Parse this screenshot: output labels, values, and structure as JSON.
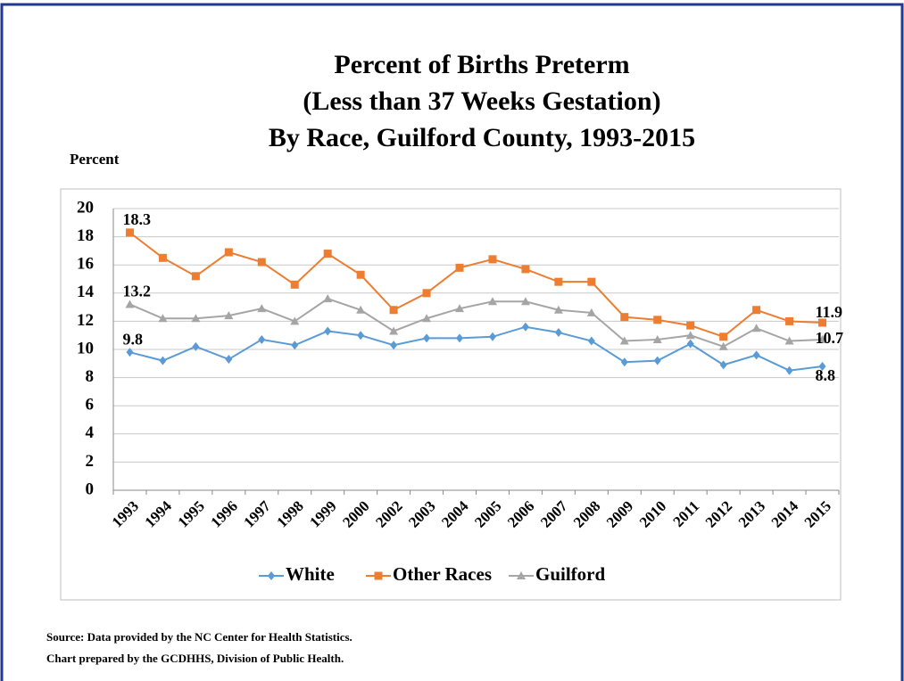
{
  "chart_data": {
    "type": "line",
    "title": [
      "Percent of Births Preterm",
      "(Less than 37 Weeks Gestation)",
      "By Race, Guilford County, 1993-2015"
    ],
    "y_label": "Percent",
    "categories": [
      "1993",
      "1994",
      "1995",
      "1996",
      "1997",
      "1998",
      "1999",
      "2000",
      "2002",
      "2003",
      "2004",
      "2005",
      "2006",
      "2007",
      "2008",
      "2009",
      "2010",
      "2011",
      "2012",
      "2013",
      "2014",
      "2015"
    ],
    "series": [
      {
        "name": "White",
        "color": "#5b9bd5",
        "marker": "diamond",
        "values": [
          9.8,
          9.2,
          10.2,
          9.3,
          10.7,
          10.3,
          11.3,
          11.0,
          10.3,
          10.8,
          10.8,
          10.9,
          11.6,
          11.2,
          10.6,
          9.1,
          9.2,
          10.4,
          8.9,
          9.6,
          8.5,
          8.8
        ]
      },
      {
        "name": "Other Races",
        "color": "#ed7d31",
        "marker": "square",
        "values": [
          18.3,
          16.5,
          15.2,
          16.9,
          16.2,
          14.6,
          16.8,
          15.3,
          12.8,
          14.0,
          15.8,
          16.4,
          15.7,
          14.8,
          14.8,
          12.3,
          12.1,
          11.7,
          10.9,
          12.8,
          12.0,
          11.9
        ]
      },
      {
        "name": "Guilford",
        "color": "#a5a5a5",
        "marker": "triangle",
        "values": [
          13.2,
          12.2,
          12.2,
          12.4,
          12.9,
          12.0,
          13.6,
          12.8,
          11.3,
          12.2,
          12.9,
          13.4,
          13.4,
          12.8,
          12.6,
          10.6,
          10.7,
          11.0,
          10.2,
          11.5,
          10.6,
          10.7
        ]
      }
    ],
    "ylim": [
      0,
      20
    ],
    "yticks": [
      0,
      2,
      4,
      6,
      8,
      10,
      12,
      14,
      16,
      18,
      20
    ],
    "grid": true,
    "legend": "bottom",
    "source": [
      "Source: Data provided by the NC Center for Health Statistics.",
      "Chart prepared by the GCDHHS, Division of Public Health."
    ]
  }
}
